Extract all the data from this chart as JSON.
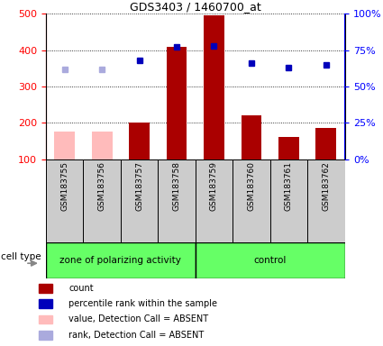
{
  "title": "GDS3403 / 1460700_at",
  "samples": [
    "GSM183755",
    "GSM183756",
    "GSM183757",
    "GSM183758",
    "GSM183759",
    "GSM183760",
    "GSM183761",
    "GSM183762"
  ],
  "counts": [
    175,
    175,
    200,
    410,
    495,
    220,
    160,
    185
  ],
  "percentile_ranks": [
    62,
    62,
    68,
    77,
    78,
    66,
    63,
    65
  ],
  "absent_flags": [
    true,
    true,
    false,
    false,
    false,
    false,
    false,
    false
  ],
  "ylim_left": [
    100,
    500
  ],
  "yticks_left": [
    100,
    200,
    300,
    400,
    500
  ],
  "ytick_labels_right": [
    "0%",
    "25%",
    "50%",
    "75%",
    "100%"
  ],
  "yticks_right_vals": [
    0,
    25,
    50,
    75,
    100
  ],
  "bar_color_present": "#aa0000",
  "bar_color_absent": "#ffbbbb",
  "dot_color_present": "#0000bb",
  "dot_color_absent": "#aaaadd",
  "groups": [
    {
      "label": "zone of polarizing activity",
      "start": 0,
      "end": 3
    },
    {
      "label": "control",
      "start": 4,
      "end": 7
    }
  ],
  "cell_type_label": "cell type",
  "group_bg_color": "#66ff66",
  "sample_bg_color": "#cccccc",
  "legend_items": [
    {
      "label": "count",
      "color": "#aa0000"
    },
    {
      "label": "percentile rank within the sample",
      "color": "#0000bb"
    },
    {
      "label": "value, Detection Call = ABSENT",
      "color": "#ffbbbb"
    },
    {
      "label": "rank, Detection Call = ABSENT",
      "color": "#aaaadd"
    }
  ]
}
